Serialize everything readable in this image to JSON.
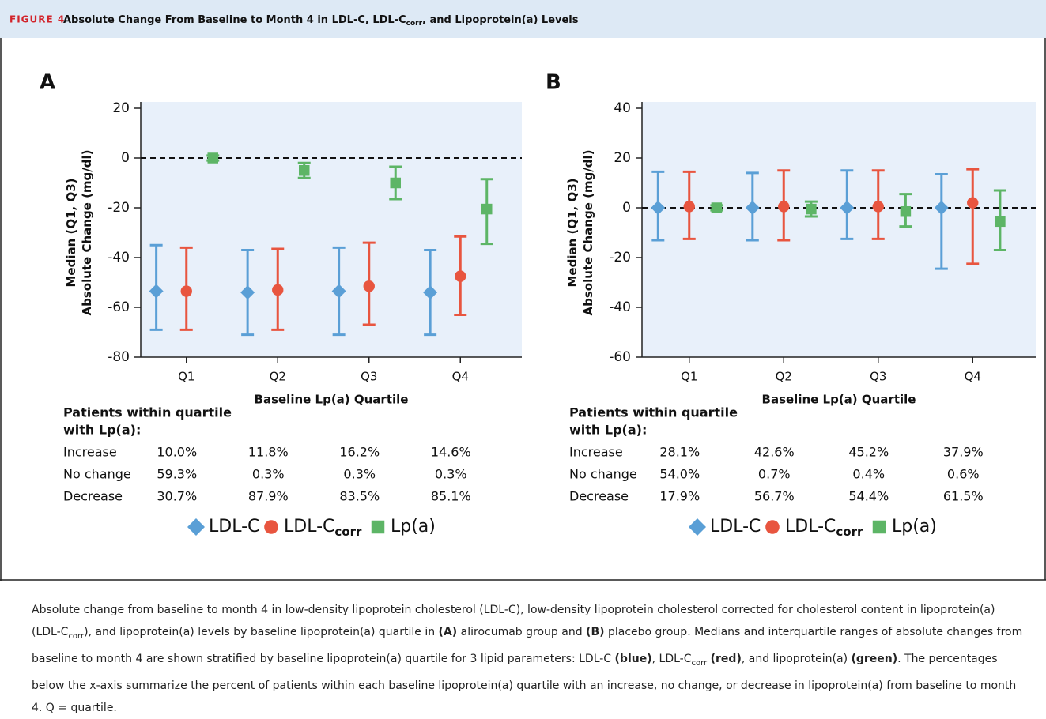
{
  "header": {
    "label": "FIGURE 4",
    "title": [
      "Absolute Change From Baseline to Month 4 in LDL-C, LDL-C",
      "corr",
      ", and Lipoprotein(a) Levels"
    ]
  },
  "chart_data": [
    {
      "type": "errorbar",
      "panel": "A",
      "ylabel": [
        "Median (Q1, Q3)",
        "Absolute Change (mg/dl)"
      ],
      "xlabel": "Baseline Lp(a) Quartile",
      "categories": [
        "Q1",
        "Q2",
        "Q3",
        "Q4"
      ],
      "ylim": [
        -80,
        20
      ],
      "yticks": [
        -80,
        -60,
        -40,
        -20,
        0,
        20
      ],
      "reference_line": 0,
      "series": [
        {
          "name": "LDL-C",
          "color": "#5a9fd6",
          "marker": "diamond",
          "values": [
            -53.5,
            -54,
            -53.5,
            -54
          ],
          "low": [
            -69,
            -71,
            -71,
            -71
          ],
          "high": [
            -35,
            -37,
            -36,
            -37
          ]
        },
        {
          "name": "LDL-C",
          "name_sub": "corr",
          "color": "#e8553f",
          "marker": "circle",
          "values": [
            -53.5,
            -53,
            -51.5,
            -47.5
          ],
          "low": [
            -69,
            -69,
            -67,
            -63
          ],
          "high": [
            -36,
            -36.5,
            -34,
            -31.5
          ]
        },
        {
          "name": "Lp(a)",
          "color": "#5db566",
          "marker": "square",
          "values": [
            0,
            -5,
            -10,
            -20.5
          ],
          "low": [
            -1,
            -8,
            -16.5,
            -34.5
          ],
          "high": [
            1,
            -2,
            -3.5,
            -8.5
          ]
        }
      ],
      "table": {
        "heading": [
          "Patients within quartile",
          "with Lp(a):"
        ],
        "rows": [
          [
            "Increase",
            "10.0%",
            "11.8%",
            "16.2%",
            "14.6%"
          ],
          [
            "No change",
            "59.3%",
            "0.3%",
            "0.3%",
            "0.3%"
          ],
          [
            "Decrease",
            "30.7%",
            "87.9%",
            "83.5%",
            "85.1%"
          ]
        ]
      }
    },
    {
      "type": "errorbar",
      "panel": "B",
      "ylabel": [
        "Median (Q1, Q3)",
        "Absolute Change (mg/dl)"
      ],
      "xlabel": "Baseline Lp(a) Quartile",
      "categories": [
        "Q1",
        "Q2",
        "Q3",
        "Q4"
      ],
      "ylim": [
        -60,
        40
      ],
      "yticks": [
        -60,
        -40,
        -20,
        0,
        20,
        40
      ],
      "reference_line": 0,
      "series": [
        {
          "name": "LDL-C",
          "color": "#5a9fd6",
          "marker": "diamond",
          "values": [
            0,
            0,
            0,
            0
          ],
          "low": [
            -13,
            -13,
            -12.5,
            -24.5
          ],
          "high": [
            14.5,
            14,
            15,
            13.5
          ]
        },
        {
          "name": "LDL-C",
          "name_sub": "corr",
          "color": "#e8553f",
          "marker": "circle",
          "values": [
            0.5,
            0.5,
            0.5,
            2
          ],
          "low": [
            -12.5,
            -13,
            -12.5,
            -22.5
          ],
          "high": [
            14.5,
            15,
            15,
            15.5
          ]
        },
        {
          "name": "Lp(a)",
          "color": "#5db566",
          "marker": "square",
          "values": [
            0,
            -0.5,
            -1.5,
            -5.5
          ],
          "low": [
            -1,
            -3.5,
            -7.5,
            -17
          ],
          "high": [
            1,
            2.5,
            5.5,
            7
          ]
        }
      ],
      "table": {
        "heading": [
          "Patients within quartile",
          "with Lp(a):"
        ],
        "rows": [
          [
            "Increase",
            "28.1%",
            "42.6%",
            "45.2%",
            "37.9%"
          ],
          [
            "No change",
            "54.0%",
            "0.7%",
            "0.4%",
            "0.6%"
          ],
          [
            "Decrease",
            "17.9%",
            "56.7%",
            "54.4%",
            "61.5%"
          ]
        ]
      }
    }
  ],
  "caption": [
    {
      "text": "Absolute change from baseline to month 4 in low-density lipoprotein cholesterol (LDL-C), low-density lipoprotein cholesterol corrected for cholesterol content in lipoprotein(a) (LDL-C"
    },
    {
      "text": "corr",
      "style": "sub"
    },
    {
      "text": "), and lipoprotein(a) levels by baseline lipoprotein(a) quartile in "
    },
    {
      "text": "(A)",
      "style": "bold"
    },
    {
      "text": " alirocumab group and "
    },
    {
      "text": "(B)",
      "style": "bold"
    },
    {
      "text": " placebo group. Medians and interquartile ranges of absolute changes from baseline to month 4 are shown stratified by baseline lipoprotein(a) quartile for 3 lipid parameters: LDL-C "
    },
    {
      "text": "(blue)",
      "style": "bold"
    },
    {
      "text": ", LDL-C"
    },
    {
      "text": "corr",
      "style": "sub"
    },
    {
      "text": " "
    },
    {
      "text": "(red)",
      "style": "bold"
    },
    {
      "text": ", and lipoprotein(a) "
    },
    {
      "text": "(green)",
      "style": "bold"
    },
    {
      "text": ". The percentages below the x-axis summarize the percent of patients within each baseline lipoprotein(a) quartile with an increase, no change, or decrease in lipoprotein(a) from baseline to month 4. Q = quartile."
    }
  ]
}
